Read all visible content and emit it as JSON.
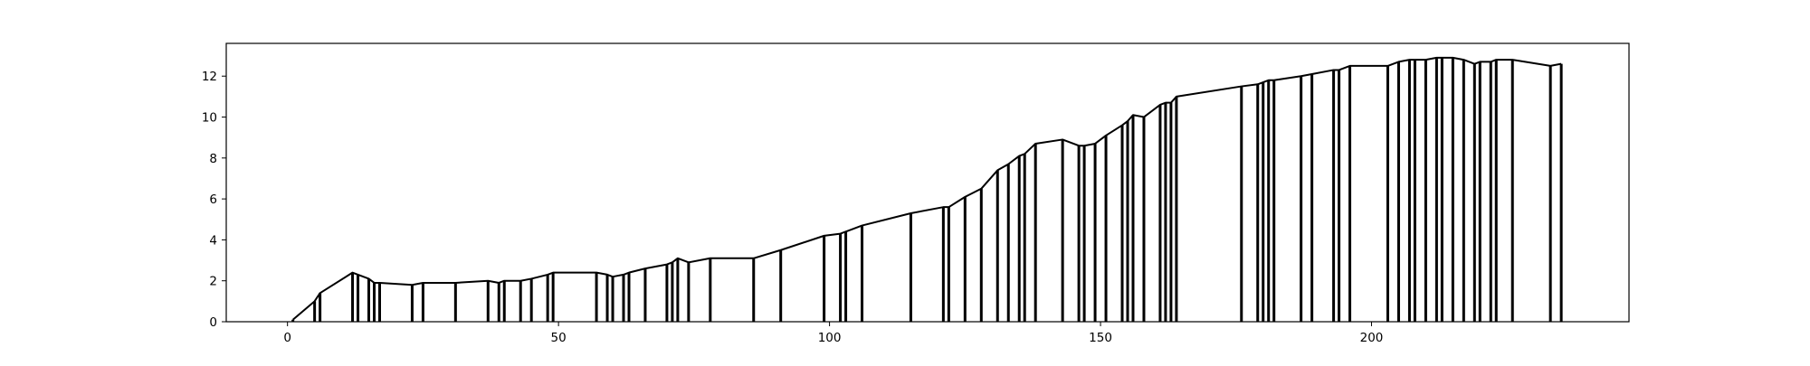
{
  "chart_data": {
    "type": "area",
    "title": "",
    "xlabel": "",
    "ylabel": "",
    "xlim": [
      -11.3,
      247.5
    ],
    "ylim": [
      0,
      13.6
    ],
    "x_ticks": [
      0,
      50,
      100,
      150,
      200
    ],
    "y_ticks": [
      0,
      2,
      4,
      6,
      8,
      10,
      12
    ],
    "x_tick_labels": [
      "0",
      "50",
      "100",
      "150",
      "200"
    ],
    "y_tick_labels": [
      "0",
      "2",
      "4",
      "6",
      "8",
      "10",
      "12"
    ],
    "grid": false,
    "legend": "none",
    "colors": {
      "line": "#000000",
      "axes": "#000000",
      "background": "#ffffff"
    },
    "series": [
      {
        "x": [
          1,
          5,
          6,
          12,
          13,
          15,
          16,
          17,
          23,
          25,
          31,
          37,
          39,
          40,
          43,
          45,
          48,
          49,
          57,
          59,
          60,
          62,
          63,
          66,
          70,
          71,
          72,
          74,
          78,
          86,
          91,
          99,
          102,
          103,
          106,
          115,
          121,
          122,
          125,
          128,
          131,
          133,
          135,
          136,
          138,
          143,
          146,
          147,
          149,
          151,
          154,
          155,
          156,
          158,
          161,
          162,
          163,
          164,
          176,
          179,
          180,
          181,
          182,
          187,
          189,
          193,
          194,
          196,
          203,
          205,
          207,
          208,
          210,
          212,
          213,
          215,
          217,
          219,
          220,
          222,
          223,
          226,
          233,
          235
        ],
        "y": [
          0.1,
          1.0,
          1.4,
          2.4,
          2.3,
          2.1,
          1.9,
          1.9,
          1.8,
          1.9,
          1.9,
          2.0,
          1.9,
          2.0,
          2.0,
          2.1,
          2.3,
          2.4,
          2.4,
          2.3,
          2.2,
          2.3,
          2.4,
          2.6,
          2.8,
          2.9,
          3.1,
          2.9,
          3.1,
          3.1,
          3.5,
          4.2,
          4.3,
          4.4,
          4.7,
          5.3,
          5.6,
          5.6,
          6.1,
          6.5,
          7.4,
          7.7,
          8.1,
          8.2,
          8.7,
          8.9,
          8.6,
          8.6,
          8.7,
          9.1,
          9.6,
          9.8,
          10.1,
          10.0,
          10.6,
          10.7,
          10.7,
          11.0,
          11.5,
          11.6,
          11.7,
          11.8,
          11.8,
          12.0,
          12.1,
          12.3,
          12.3,
          12.5,
          12.5,
          12.7,
          12.8,
          12.8,
          12.8,
          12.9,
          12.9,
          12.9,
          12.8,
          12.6,
          12.7,
          12.7,
          12.8,
          12.8,
          12.5,
          12.6
        ]
      }
    ]
  }
}
